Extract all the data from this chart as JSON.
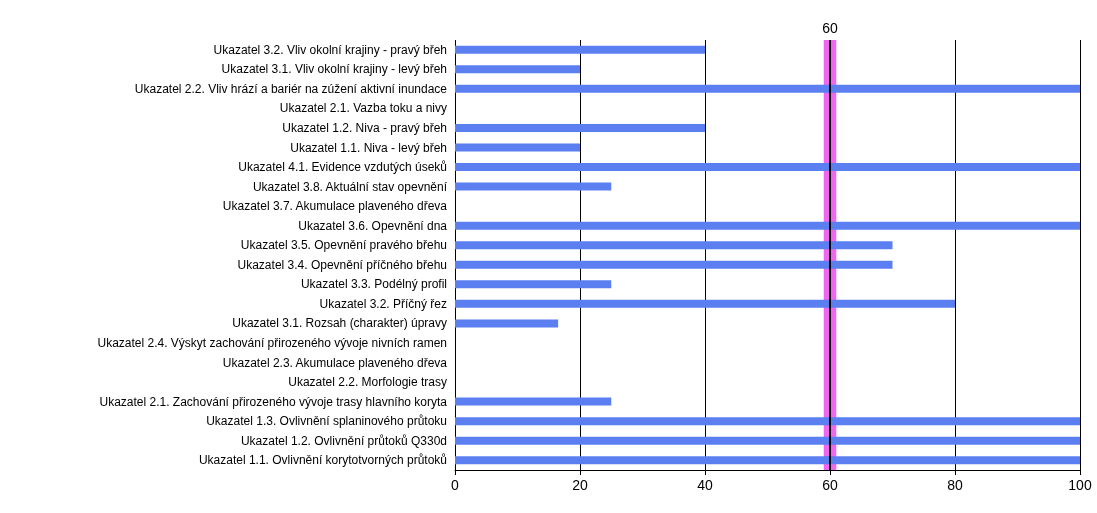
{
  "chart_data": {
    "type": "bar",
    "orientation": "horizontal",
    "categories": [
      "Ukazatel 3.2. Vliv okolní krajiny - pravý břeh",
      "Ukazatel 3.1. Vliv okolní krajiny - levý břeh",
      "Ukazatel 2.2. Vliv hrází a bariér na zúžení aktivní inundace",
      "Ukazatel 2.1. Vazba toku a nivy",
      "Ukazatel 1.2. Niva - pravý břeh",
      "Ukazatel 1.1. Niva - levý břeh",
      "Ukazatel 4.1. Evidence vzdutých úseků",
      "Ukazatel 3.8. Aktuální stav opevnění",
      "Ukazatel 3.7. Akumulace plaveného dřeva",
      "Ukazatel 3.6. Opevnění dna",
      "Ukazatel 3.5. Opevnění pravého břehu",
      "Ukazatel 3.4. Opevnění příčného břehu",
      "Ukazatel 3.3. Podélný profil",
      "Ukazatel 3.2. Příčný řez",
      "Ukazatel 3.1. Rozsah (charakter) úpravy",
      "Ukazatel 2.4. Výskyt zachování přirozeného vývoje nivních ramen",
      "Ukazatel 2.3. Akumulace plaveného dřeva",
      "Ukazatel 2.2. Morfologie trasy",
      "Ukazatel 2.1. Zachování přirozeného vývoje trasy hlavního koryta",
      "Ukazatel 1.3. Ovlivnění splaninového průtoku",
      "Ukazatel 1.2. Ovlivnění průtoků Q330d",
      "Ukazatel 1.1. Ovlivnění korytotvorných průtoků"
    ],
    "values": [
      40,
      20,
      100,
      0,
      40,
      20,
      100,
      25,
      0,
      100,
      70,
      70,
      25,
      80,
      16.5,
      0,
      0,
      0,
      25,
      100,
      100,
      100
    ],
    "color": "#5b7ff0",
    "xlim": [
      0,
      100
    ],
    "xticks": [
      0,
      20,
      40,
      60,
      80,
      100
    ],
    "grid": "x",
    "ref_lines": [
      {
        "axis": "x",
        "value": 60,
        "label": "60",
        "color": "#000000"
      }
    ],
    "bands": [
      {
        "axis": "x",
        "from": 59,
        "to": 61,
        "color": "#ee55ee"
      }
    ]
  }
}
